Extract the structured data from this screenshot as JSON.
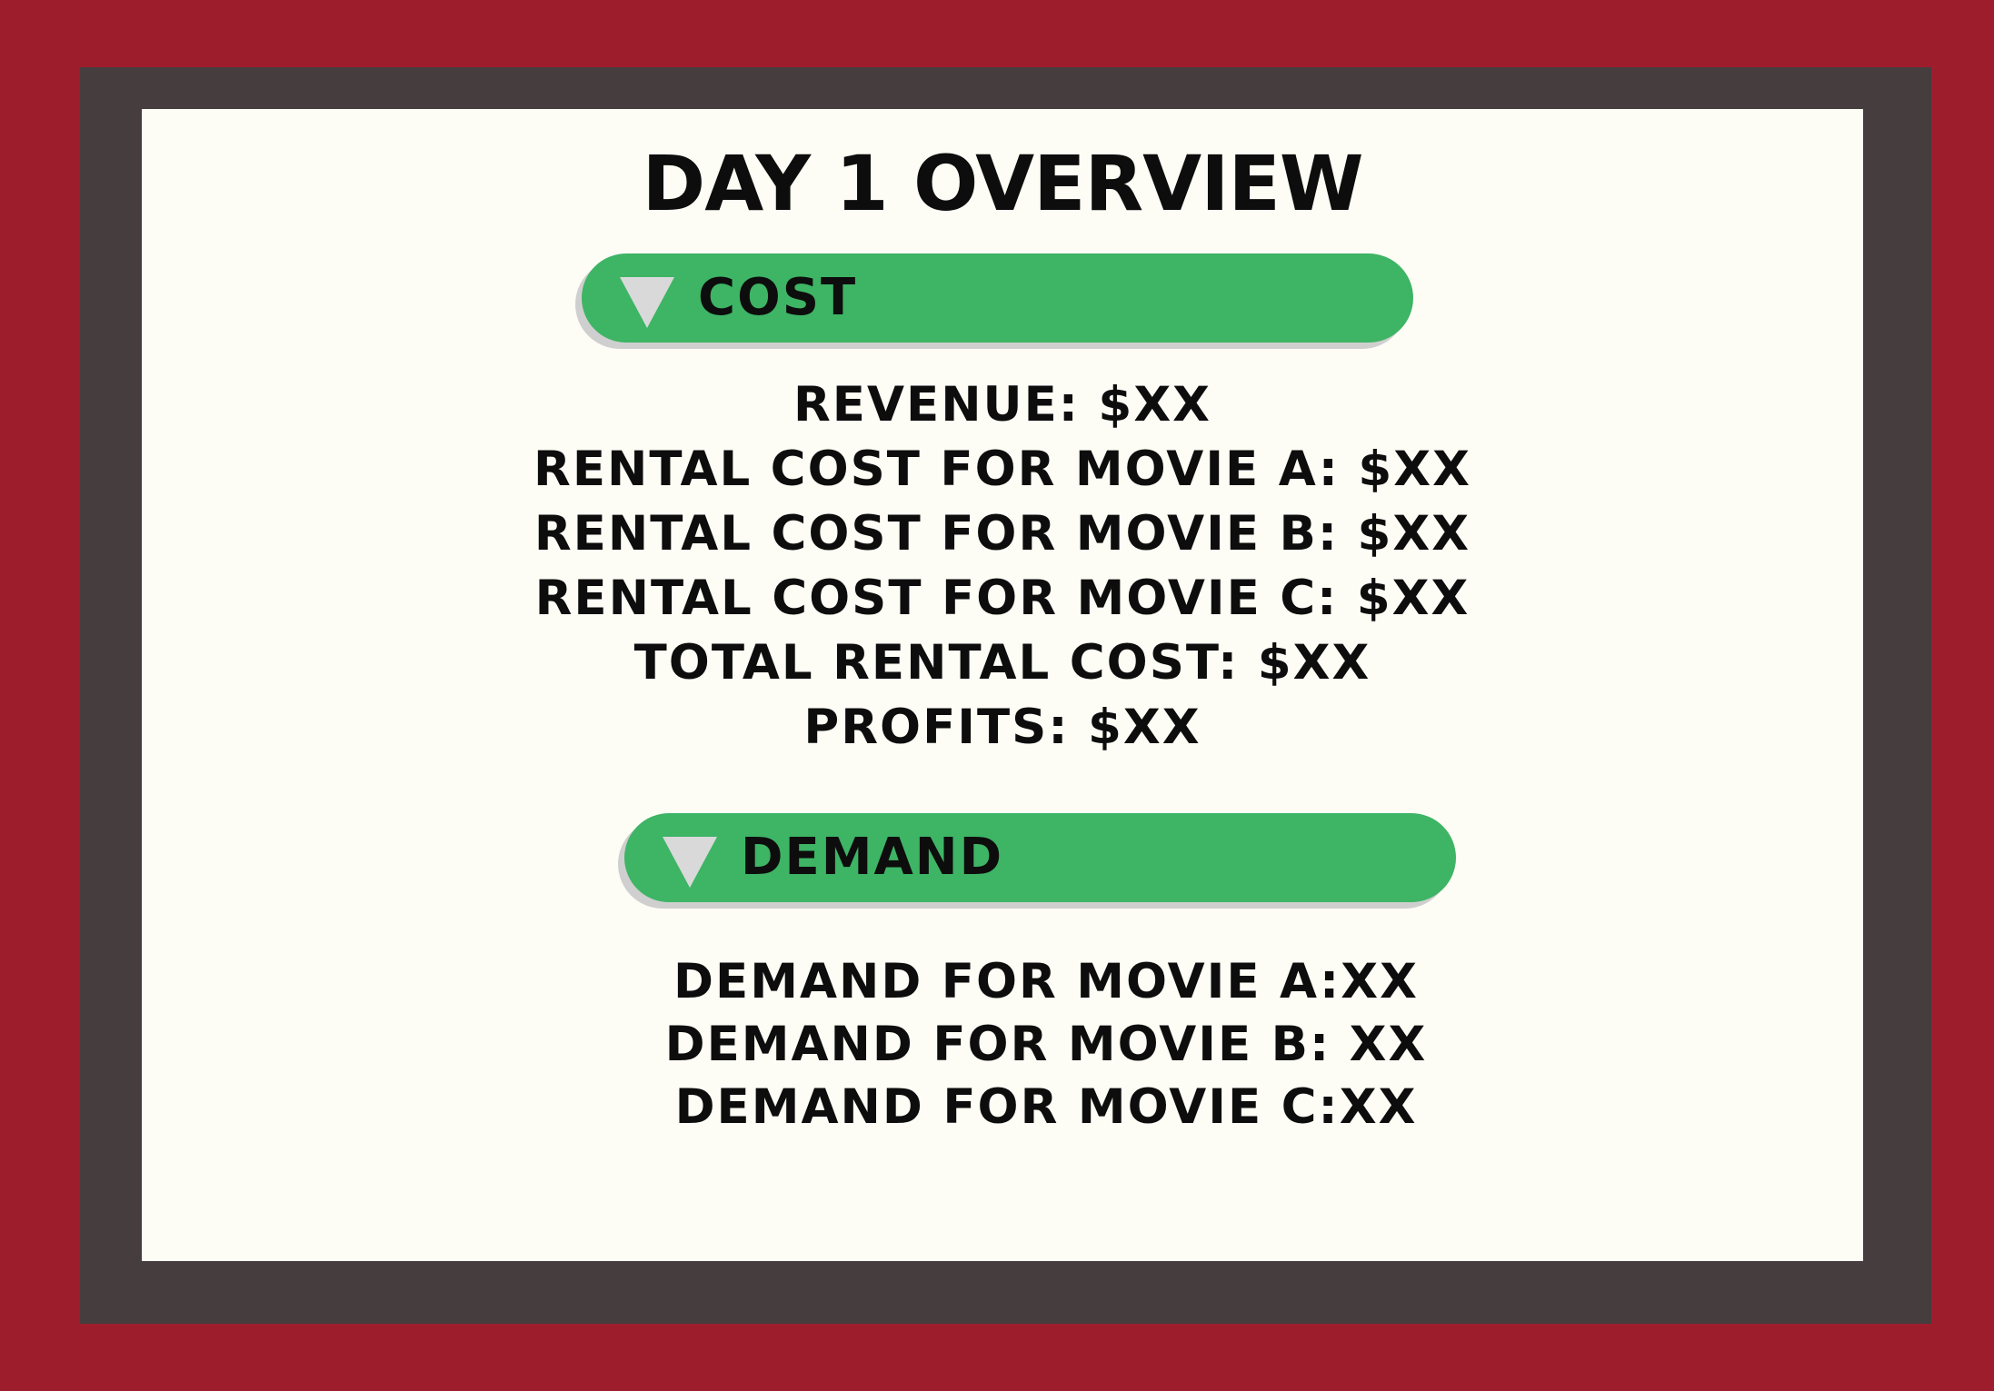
{
  "title": "DAY 1 OVERVIEW",
  "cost": {
    "label": "COST",
    "toggle_icon": "triangle-down-icon",
    "lines": [
      "REVENUE: $XX",
      "RENTAL COST FOR MOVIE A: $XX",
      "RENTAL COST FOR MOVIE B: $XX",
      "RENTAL COST FOR MOVIE C: $XX",
      "TOTAL RENTAL COST: $XX",
      "PROFITS: $XX"
    ]
  },
  "demand": {
    "label": "DEMAND",
    "toggle_icon": "triangle-down-icon",
    "lines": [
      "DEMAND FOR MOVIE A:XX",
      "DEMAND FOR MOVIE B: XX",
      "DEMAND FOR MOVIE C:XX"
    ]
  },
  "colors": {
    "background": "#9e1d2c",
    "frame": "#463d3e",
    "panel": "#fdfdf6",
    "accent_green": "#3eb465",
    "triangle": "#d9d9d9"
  }
}
